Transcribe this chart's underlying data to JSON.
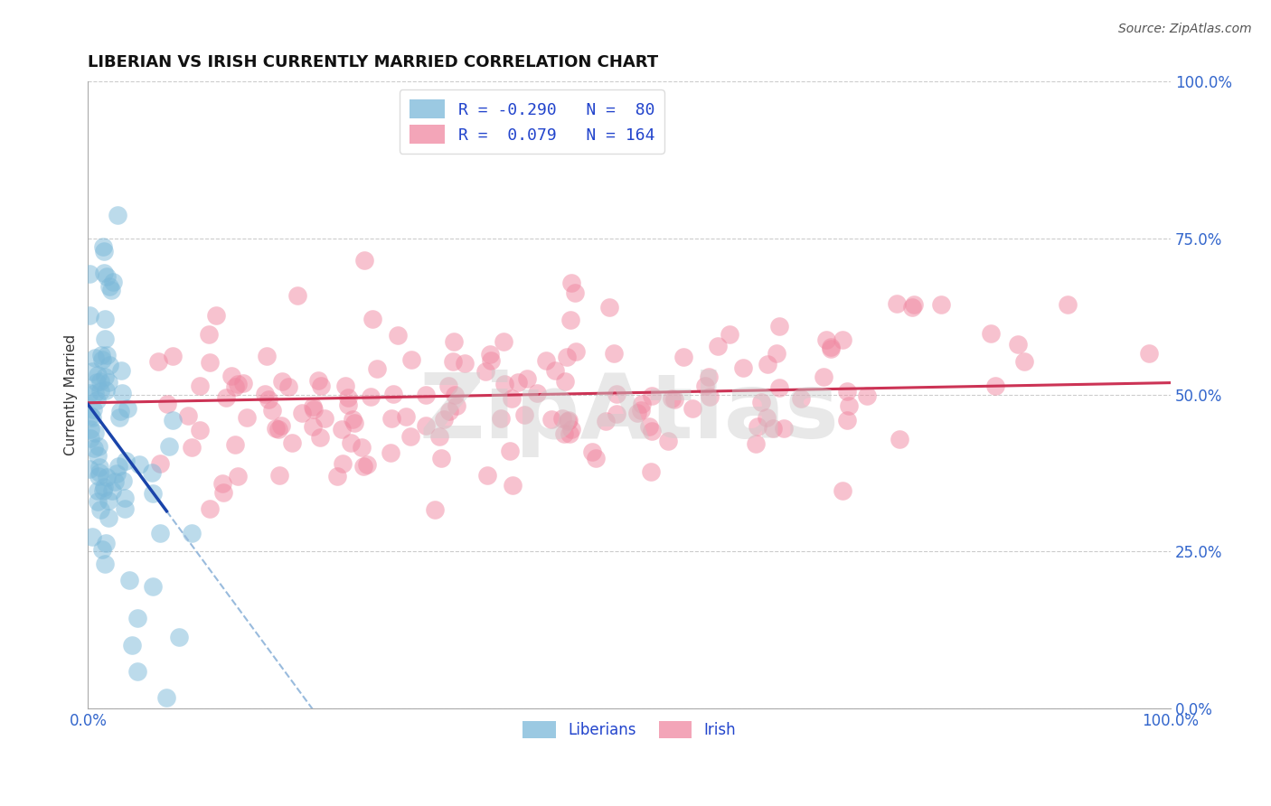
{
  "title": "LIBERIAN VS IRISH CURRENTLY MARRIED CORRELATION CHART",
  "source_text": "Source: ZipAtlas.com",
  "ylabel": "Currently Married",
  "watermark": "ZipAtlas",
  "xlim": [
    0.0,
    1.0
  ],
  "ylim": [
    0.0,
    1.0
  ],
  "ytick_labels": [
    "0.0%",
    "25.0%",
    "50.0%",
    "75.0%",
    "100.0%"
  ],
  "ytick_positions": [
    0.0,
    0.25,
    0.5,
    0.75,
    1.0
  ],
  "liberian_color": "#7ab8d9",
  "irish_color": "#f087a0",
  "liberian_R": -0.29,
  "liberian_N": 80,
  "irish_R": 0.079,
  "irish_N": 164,
  "title_fontsize": 13,
  "axis_label_color": "#333333",
  "tick_label_color": "#3366cc",
  "grid_color": "#cccccc",
  "background_color": "#ffffff",
  "lib_trend_color": "#1a44aa",
  "lib_trend_dash_color": "#99bbdd",
  "irish_trend_color": "#cc3355"
}
